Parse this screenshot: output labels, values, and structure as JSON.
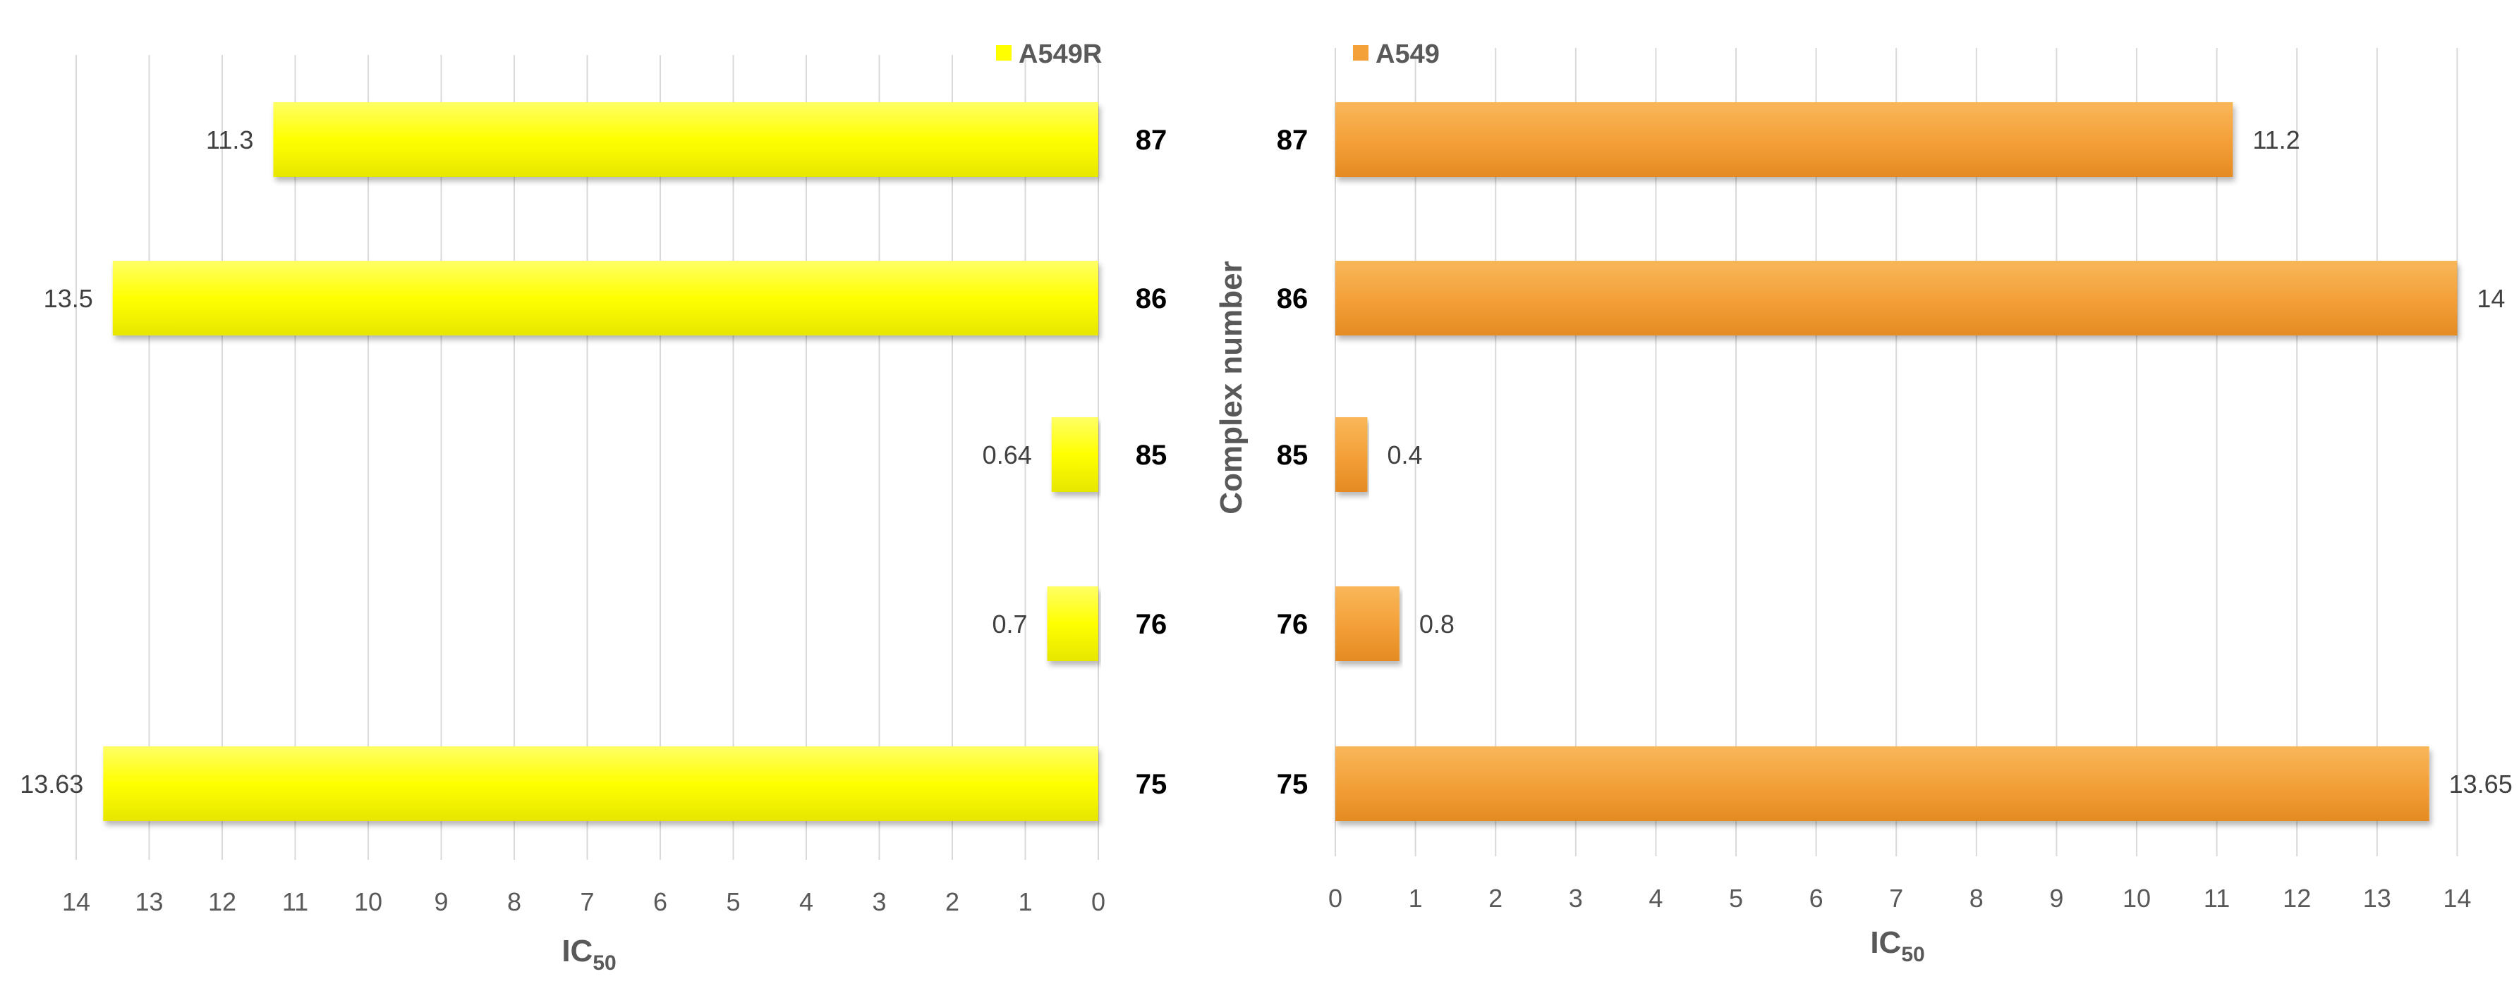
{
  "chart_data": [
    {
      "type": "bar",
      "orientation": "horizontal",
      "direction": "reversed",
      "categories": [
        "87",
        "86",
        "85",
        "76",
        "75"
      ],
      "series": [
        {
          "name": "A549R",
          "values": [
            11.3,
            13.5,
            0.64,
            0.7,
            13.63
          ],
          "color": "#ffff00"
        }
      ],
      "data_labels": [
        "11.3",
        "13.5",
        "0.64",
        "0.7",
        "13.63"
      ],
      "xlim": [
        0,
        14
      ],
      "ticks": [
        "14",
        "13",
        "12",
        "11",
        "10",
        "9",
        "8",
        "7",
        "6",
        "5",
        "4",
        "3",
        "2",
        "1",
        "0"
      ],
      "xlabel": "IC",
      "xlabel_sub": "50",
      "ylabel": "",
      "legend": "top-right",
      "grid": true
    },
    {
      "type": "bar",
      "orientation": "horizontal",
      "direction": "normal",
      "categories": [
        "87",
        "86",
        "85",
        "76",
        "75"
      ],
      "series": [
        {
          "name": "A549",
          "values": [
            11.2,
            14,
            0.4,
            0.8,
            13.65
          ],
          "color": "#f4a13a"
        }
      ],
      "data_labels": [
        "11.2",
        "14",
        "0.4",
        "0.8",
        "13.65"
      ],
      "xlim": [
        0,
        14
      ],
      "ticks": [
        "0",
        "1",
        "2",
        "3",
        "4",
        "5",
        "6",
        "7",
        "8",
        "9",
        "10",
        "11",
        "12",
        "13",
        "14"
      ],
      "xlabel": "IC",
      "xlabel_sub": "50",
      "ylabel": "Complex number",
      "legend": "top-left",
      "grid": true
    }
  ]
}
